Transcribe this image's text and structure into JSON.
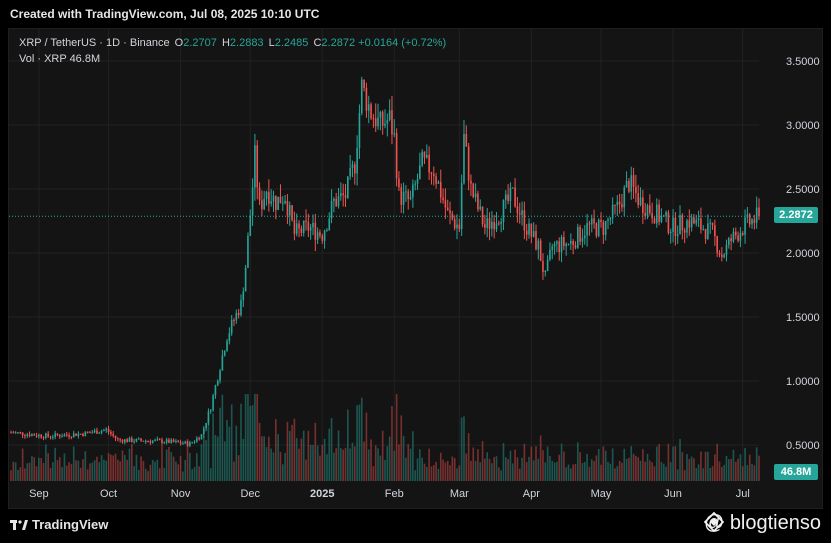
{
  "header": {
    "created_text": "Created with TradingView.com, Jul 08, 2025 10:10 UTC"
  },
  "legend": {
    "symbol": "XRP / TetherUS · 1D · Binance",
    "o_label": "O",
    "o_value": "2.2707",
    "h_label": "H",
    "h_value": "2.2883",
    "l_label": "L",
    "l_value": "2.2485",
    "c_label": "C",
    "c_value": "2.2872",
    "change": "+0.0164 (+0.72%)",
    "vol_label": "Vol · XRP",
    "vol_value": "46.8M"
  },
  "price_tag": "2.2872",
  "volume_tag": "46.8M",
  "footer": {
    "tv_logo": "TradingView",
    "watermark": "@ blogtienso"
  },
  "colors": {
    "up": "#26a69a",
    "down": "#ef5350",
    "background": "#141414",
    "grid": "#222222"
  },
  "chart_data": {
    "type": "candlestick",
    "symbol": "XRP/USDT",
    "interval": "1D",
    "y_ticks": [
      "3.5000",
      "3.0000",
      "2.5000",
      "2.0000",
      "1.5000",
      "1.0000",
      "0.5000"
    ],
    "ylim": [
      0.22,
      3.75
    ],
    "last_price": 2.2872,
    "x_ticks": [
      "Sep",
      "Oct",
      "Nov",
      "Dec",
      "2025",
      "Feb",
      "Mar",
      "Apr",
      "May",
      "Jun",
      "Jul"
    ],
    "x_range_dates": [
      "2024-08-20",
      "2025-07-08"
    ],
    "price_path": [
      [
        "2024-08-20",
        0.6
      ],
      [
        "2024-09-05",
        0.57
      ],
      [
        "2024-09-20",
        0.59
      ],
      [
        "2024-09-30",
        0.62
      ],
      [
        "2024-10-05",
        0.54
      ],
      [
        "2024-10-25",
        0.53
      ],
      [
        "2024-11-05",
        0.51
      ],
      [
        "2024-11-10",
        0.58
      ],
      [
        "2024-11-14",
        0.8
      ],
      [
        "2024-11-18",
        1.12
      ],
      [
        "2024-11-21",
        1.35
      ],
      [
        "2024-11-24",
        1.48
      ],
      [
        "2024-11-27",
        1.6
      ],
      [
        "2024-11-29",
        1.9
      ],
      [
        "2024-12-01",
        2.3
      ],
      [
        "2024-12-03",
        2.75
      ],
      [
        "2024-12-05",
        2.35
      ],
      [
        "2024-12-08",
        2.5
      ],
      [
        "2024-12-12",
        2.4
      ],
      [
        "2024-12-16",
        2.45
      ],
      [
        "2024-12-20",
        2.15
      ],
      [
        "2024-12-26",
        2.2
      ],
      [
        "2025-01-01",
        2.15
      ],
      [
        "2025-01-06",
        2.4
      ],
      [
        "2025-01-11",
        2.45
      ],
      [
        "2025-01-15",
        2.7
      ],
      [
        "2025-01-18",
        3.3
      ],
      [
        "2025-01-22",
        3.1
      ],
      [
        "2025-01-26",
        3.0
      ],
      [
        "2025-01-30",
        3.05
      ],
      [
        "2025-02-01",
        2.9
      ],
      [
        "2025-02-03",
        2.45
      ],
      [
        "2025-02-08",
        2.4
      ],
      [
        "2025-02-13",
        2.7
      ],
      [
        "2025-02-18",
        2.65
      ],
      [
        "2025-02-24",
        2.3
      ],
      [
        "2025-03-01",
        2.2
      ],
      [
        "2025-03-03",
        2.9
      ],
      [
        "2025-03-06",
        2.5
      ],
      [
        "2025-03-12",
        2.2
      ],
      [
        "2025-03-18",
        2.3
      ],
      [
        "2025-03-24",
        2.45
      ],
      [
        "2025-03-30",
        2.2
      ],
      [
        "2025-04-04",
        2.05
      ],
      [
        "2025-04-07",
        1.8
      ],
      [
        "2025-04-10",
        2.05
      ],
      [
        "2025-04-18",
        2.08
      ],
      [
        "2025-04-25",
        2.2
      ],
      [
        "2025-05-02",
        2.2
      ],
      [
        "2025-05-08",
        2.35
      ],
      [
        "2025-05-13",
        2.55
      ],
      [
        "2025-05-18",
        2.4
      ],
      [
        "2025-05-25",
        2.3
      ],
      [
        "2025-06-01",
        2.2
      ],
      [
        "2025-06-08",
        2.25
      ],
      [
        "2025-06-14",
        2.2
      ],
      [
        "2025-06-18",
        2.15
      ],
      [
        "2025-06-22",
        1.98
      ],
      [
        "2025-06-26",
        2.1
      ],
      [
        "2025-07-01",
        2.2
      ],
      [
        "2025-07-08",
        2.2872
      ]
    ],
    "volume_unit": "XRP",
    "last_volume": "46.8M"
  }
}
